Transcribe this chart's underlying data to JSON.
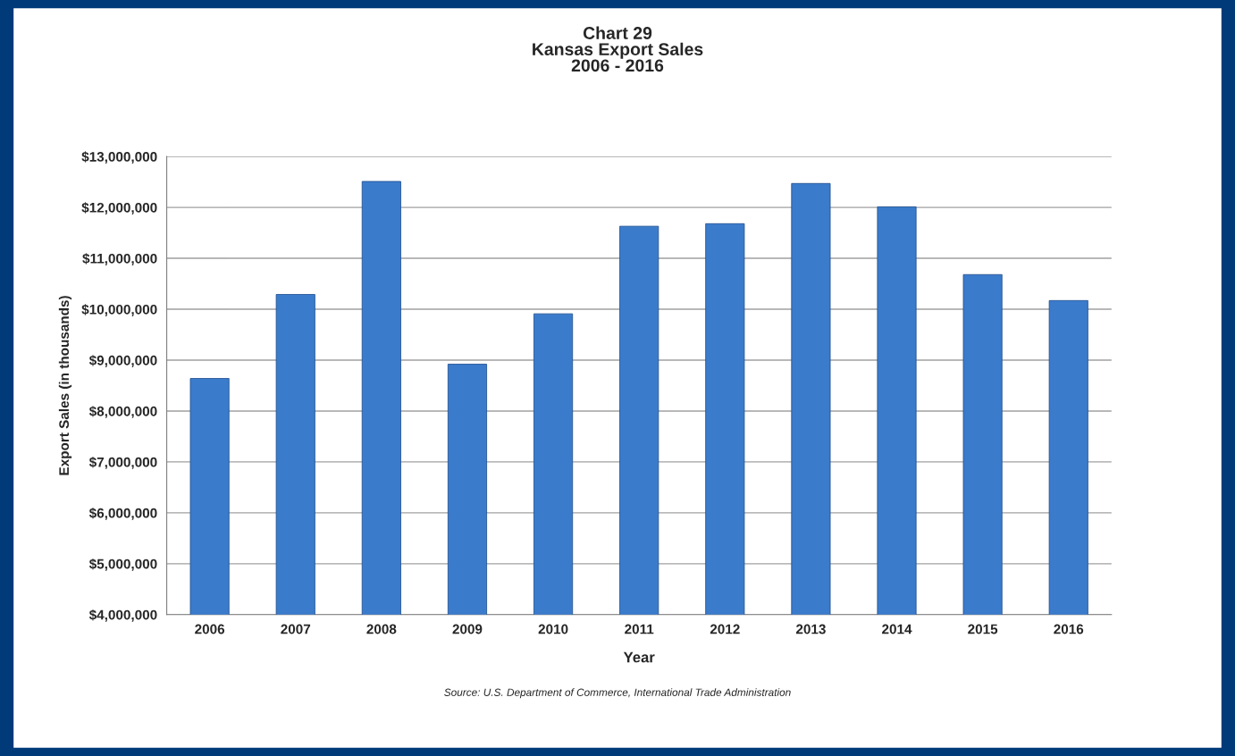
{
  "chart_data": {
    "type": "bar",
    "title": "Chart 29\nKansas Export Sales\n2006 - 2016",
    "xlabel": "Year",
    "ylabel": "Export Sales (in thousands)",
    "categories": [
      "2006",
      "2007",
      "2008",
      "2009",
      "2010",
      "2011",
      "2012",
      "2013",
      "2014",
      "2015",
      "2016"
    ],
    "values": [
      8640000,
      10290000,
      12510000,
      8920000,
      9910000,
      11630000,
      11680000,
      12470000,
      12010000,
      10680000,
      10170000
    ],
    "color": "#3b7bcc",
    "ylim": [
      4000000,
      13000000
    ],
    "yticks": [
      {
        "value": 4000000,
        "label": "$4,000,000"
      },
      {
        "value": 5000000,
        "label": "$5,000,000"
      },
      {
        "value": 6000000,
        "label": "$6,000,000"
      },
      {
        "value": 7000000,
        "label": "$7,000,000"
      },
      {
        "value": 8000000,
        "label": "$8,000,000"
      },
      {
        "value": 9000000,
        "label": "$9,000,000"
      },
      {
        "value": 10000000,
        "label": "$10,000,000"
      },
      {
        "value": 11000000,
        "label": "$11,000,000"
      },
      {
        "value": 12000000,
        "label": "$12,000,000"
      },
      {
        "value": 13000000,
        "label": "$13,000,000"
      }
    ],
    "grid": "y",
    "annotations": [
      "Source: U.S. Department of Commerce, International Trade Administration"
    ]
  }
}
